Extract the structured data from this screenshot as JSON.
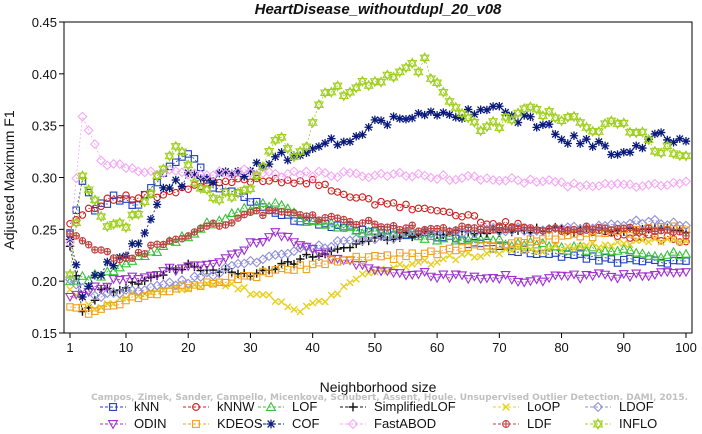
{
  "chart_data": {
    "type": "line",
    "title": "HeartDisease_withoutdupl_20_v08",
    "xlabel": "Neighborhood size",
    "ylabel": "Adjusted Maximum F1",
    "xlim": [
      1,
      100
    ],
    "ylim": [
      0.15,
      0.45
    ],
    "xticks": [
      1,
      10,
      20,
      30,
      40,
      50,
      60,
      70,
      80,
      90,
      100
    ],
    "yticks": [
      0.15,
      0.2,
      0.25,
      0.3,
      0.35,
      0.4,
      0.45
    ],
    "grid": false,
    "legend_position": "bottom",
    "watermark": "Campos, Zimek, Sander, Campello, Micenkova, Schubert, Assent, Houle. Unsupervised Outlier Detection. DAMI, 2015.",
    "series": [
      {
        "name": "kNN",
        "color": "#1f3fbf",
        "marker": "square",
        "knots": [
          [
            1,
            0.245
          ],
          [
            3,
            0.297
          ],
          [
            5,
            0.27
          ],
          [
            8,
            0.28
          ],
          [
            12,
            0.275
          ],
          [
            16,
            0.305
          ],
          [
            20,
            0.325
          ],
          [
            24,
            0.29
          ],
          [
            28,
            0.285
          ],
          [
            32,
            0.27
          ],
          [
            36,
            0.262
          ],
          [
            40,
            0.257
          ],
          [
            45,
            0.253
          ],
          [
            50,
            0.25
          ],
          [
            55,
            0.247
          ],
          [
            60,
            0.244
          ],
          [
            65,
            0.238
          ],
          [
            70,
            0.232
          ],
          [
            75,
            0.228
          ],
          [
            80,
            0.225
          ],
          [
            85,
            0.222
          ],
          [
            90,
            0.22
          ],
          [
            95,
            0.218
          ],
          [
            100,
            0.222
          ]
        ]
      },
      {
        "name": "kNNW",
        "color": "#d02020",
        "marker": "circle",
        "knots": [
          [
            1,
            0.255
          ],
          [
            4,
            0.27
          ],
          [
            8,
            0.28
          ],
          [
            12,
            0.28
          ],
          [
            16,
            0.283
          ],
          [
            20,
            0.29
          ],
          [
            25,
            0.295
          ],
          [
            30,
            0.298
          ],
          [
            35,
            0.298
          ],
          [
            40,
            0.295
          ],
          [
            45,
            0.285
          ],
          [
            50,
            0.275
          ],
          [
            55,
            0.272
          ],
          [
            60,
            0.268
          ],
          [
            65,
            0.262
          ],
          [
            70,
            0.255
          ],
          [
            75,
            0.252
          ],
          [
            80,
            0.25
          ],
          [
            85,
            0.248
          ],
          [
            90,
            0.245
          ],
          [
            95,
            0.242
          ],
          [
            100,
            0.24
          ]
        ]
      },
      {
        "name": "LOF",
        "color": "#3ac23a",
        "marker": "triangle-up",
        "knots": [
          [
            1,
            0.2
          ],
          [
            5,
            0.205
          ],
          [
            10,
            0.215
          ],
          [
            15,
            0.23
          ],
          [
            20,
            0.245
          ],
          [
            25,
            0.26
          ],
          [
            30,
            0.27
          ],
          [
            34,
            0.275
          ],
          [
            38,
            0.26
          ],
          [
            42,
            0.255
          ],
          [
            46,
            0.25
          ],
          [
            50,
            0.248
          ],
          [
            55,
            0.245
          ],
          [
            60,
            0.242
          ],
          [
            65,
            0.24
          ],
          [
            70,
            0.238
          ],
          [
            75,
            0.235
          ],
          [
            80,
            0.232
          ],
          [
            85,
            0.23
          ],
          [
            90,
            0.228
          ],
          [
            95,
            0.226
          ],
          [
            100,
            0.225
          ]
        ]
      },
      {
        "name": "SimplifiedLOF",
        "color": "#111111",
        "marker": "plus",
        "knots": [
          [
            1,
            0.235
          ],
          [
            3,
            0.17
          ],
          [
            6,
            0.19
          ],
          [
            10,
            0.195
          ],
          [
            15,
            0.205
          ],
          [
            20,
            0.215
          ],
          [
            25,
            0.21
          ],
          [
            30,
            0.205
          ],
          [
            35,
            0.215
          ],
          [
            40,
            0.225
          ],
          [
            45,
            0.232
          ],
          [
            50,
            0.24
          ],
          [
            55,
            0.245
          ],
          [
            60,
            0.247
          ],
          [
            65,
            0.248
          ],
          [
            70,
            0.248
          ],
          [
            75,
            0.249
          ],
          [
            80,
            0.25
          ],
          [
            85,
            0.25
          ],
          [
            90,
            0.25
          ],
          [
            95,
            0.25
          ],
          [
            100,
            0.25
          ]
        ]
      },
      {
        "name": "LoOP",
        "color": "#e8d020",
        "marker": "cross",
        "knots": [
          [
            1,
            0.19
          ],
          [
            5,
            0.175
          ],
          [
            10,
            0.185
          ],
          [
            15,
            0.19
          ],
          [
            20,
            0.195
          ],
          [
            25,
            0.2
          ],
          [
            30,
            0.19
          ],
          [
            35,
            0.18
          ],
          [
            38,
            0.172
          ],
          [
            42,
            0.18
          ],
          [
            46,
            0.2
          ],
          [
            50,
            0.21
          ],
          [
            55,
            0.215
          ],
          [
            60,
            0.22
          ],
          [
            65,
            0.225
          ],
          [
            70,
            0.228
          ],
          [
            75,
            0.23
          ],
          [
            80,
            0.232
          ],
          [
            85,
            0.235
          ],
          [
            90,
            0.237
          ],
          [
            95,
            0.24
          ],
          [
            100,
            0.24
          ]
        ]
      },
      {
        "name": "LDOF",
        "color": "#9090d8",
        "marker": "diamond",
        "knots": [
          [
            1,
            0.2
          ],
          [
            5,
            0.185
          ],
          [
            10,
            0.19
          ],
          [
            15,
            0.195
          ],
          [
            20,
            0.2
          ],
          [
            25,
            0.21
          ],
          [
            30,
            0.22
          ],
          [
            35,
            0.225
          ],
          [
            40,
            0.232
          ],
          [
            45,
            0.238
          ],
          [
            50,
            0.242
          ],
          [
            55,
            0.245
          ],
          [
            60,
            0.247
          ],
          [
            65,
            0.248
          ],
          [
            70,
            0.249
          ],
          [
            75,
            0.25
          ],
          [
            80,
            0.252
          ],
          [
            85,
            0.253
          ],
          [
            90,
            0.255
          ],
          [
            95,
            0.258
          ],
          [
            100,
            0.255
          ]
        ]
      },
      {
        "name": "ODIN",
        "color": "#a030d0",
        "marker": "triangle-down",
        "knots": [
          [
            1,
            0.185
          ],
          [
            4,
            0.19
          ],
          [
            8,
            0.2
          ],
          [
            12,
            0.205
          ],
          [
            16,
            0.21
          ],
          [
            20,
            0.215
          ],
          [
            25,
            0.22
          ],
          [
            30,
            0.235
          ],
          [
            34,
            0.245
          ],
          [
            38,
            0.235
          ],
          [
            42,
            0.225
          ],
          [
            46,
            0.218
          ],
          [
            50,
            0.212
          ],
          [
            55,
            0.208
          ],
          [
            60,
            0.205
          ],
          [
            65,
            0.205
          ],
          [
            70,
            0.205
          ],
          [
            75,
            0.2
          ],
          [
            80,
            0.205
          ],
          [
            85,
            0.205
          ],
          [
            90,
            0.205
          ],
          [
            95,
            0.205
          ],
          [
            100,
            0.21
          ]
        ]
      },
      {
        "name": "KDEOS",
        "color": "#f0a020",
        "marker": "square",
        "knots": [
          [
            1,
            0.175
          ],
          [
            5,
            0.17
          ],
          [
            10,
            0.18
          ],
          [
            15,
            0.19
          ],
          [
            20,
            0.195
          ],
          [
            25,
            0.2
          ],
          [
            30,
            0.205
          ],
          [
            35,
            0.21
          ],
          [
            40,
            0.215
          ],
          [
            45,
            0.22
          ],
          [
            50,
            0.222
          ],
          [
            55,
            0.225
          ],
          [
            60,
            0.228
          ],
          [
            65,
            0.232
          ],
          [
            70,
            0.236
          ],
          [
            75,
            0.24
          ],
          [
            80,
            0.243
          ],
          [
            85,
            0.245
          ],
          [
            90,
            0.248
          ],
          [
            95,
            0.25
          ],
          [
            100,
            0.25
          ]
        ]
      },
      {
        "name": "COF",
        "color": "#0a1a7a",
        "marker": "asterisk",
        "knots": [
          [
            1,
            0.24
          ],
          [
            3,
            0.19
          ],
          [
            5,
            0.2
          ],
          [
            8,
            0.22
          ],
          [
            12,
            0.24
          ],
          [
            16,
            0.285
          ],
          [
            20,
            0.3
          ],
          [
            24,
            0.3
          ],
          [
            28,
            0.305
          ],
          [
            32,
            0.31
          ],
          [
            35,
            0.32
          ],
          [
            38,
            0.325
          ],
          [
            42,
            0.33
          ],
          [
            46,
            0.34
          ],
          [
            50,
            0.35
          ],
          [
            55,
            0.36
          ],
          [
            60,
            0.36
          ],
          [
            65,
            0.36
          ],
          [
            70,
            0.365
          ],
          [
            75,
            0.355
          ],
          [
            80,
            0.34
          ],
          [
            85,
            0.33
          ],
          [
            90,
            0.325
          ],
          [
            95,
            0.34
          ],
          [
            100,
            0.33
          ]
        ]
      },
      {
        "name": "FastABOD",
        "color": "#f4a8f4",
        "marker": "diamond",
        "knots": [
          [
            1,
            0.24
          ],
          [
            3,
            0.36
          ],
          [
            6,
            0.315
          ],
          [
            10,
            0.31
          ],
          [
            15,
            0.305
          ],
          [
            20,
            0.305
          ],
          [
            25,
            0.305
          ],
          [
            30,
            0.305
          ],
          [
            35,
            0.303
          ],
          [
            40,
            0.303
          ],
          [
            45,
            0.303
          ],
          [
            50,
            0.302
          ],
          [
            55,
            0.302
          ],
          [
            60,
            0.3
          ],
          [
            65,
            0.3
          ],
          [
            70,
            0.298
          ],
          [
            75,
            0.296
          ],
          [
            80,
            0.294
          ],
          [
            85,
            0.292
          ],
          [
            90,
            0.292
          ],
          [
            95,
            0.293
          ],
          [
            100,
            0.295
          ]
        ]
      },
      {
        "name": "LDF",
        "color": "#c04040",
        "marker": "circle-plus",
        "knots": [
          [
            1,
            0.245
          ],
          [
            5,
            0.23
          ],
          [
            10,
            0.22
          ],
          [
            15,
            0.235
          ],
          [
            20,
            0.245
          ],
          [
            25,
            0.255
          ],
          [
            30,
            0.265
          ],
          [
            35,
            0.268
          ],
          [
            40,
            0.262
          ],
          [
            45,
            0.258
          ],
          [
            50,
            0.255
          ],
          [
            55,
            0.252
          ],
          [
            60,
            0.25
          ],
          [
            65,
            0.25
          ],
          [
            70,
            0.25
          ],
          [
            75,
            0.25
          ],
          [
            80,
            0.25
          ],
          [
            85,
            0.25
          ],
          [
            90,
            0.25
          ],
          [
            95,
            0.248
          ],
          [
            100,
            0.245
          ]
        ]
      },
      {
        "name": "INFLO",
        "color": "#a0d020",
        "marker": "star",
        "knots": [
          [
            1,
            0.205
          ],
          [
            3,
            0.3
          ],
          [
            6,
            0.26
          ],
          [
            10,
            0.25
          ],
          [
            15,
            0.3
          ],
          [
            18,
            0.33
          ],
          [
            22,
            0.29
          ],
          [
            26,
            0.28
          ],
          [
            30,
            0.285
          ],
          [
            34,
            0.34
          ],
          [
            38,
            0.32
          ],
          [
            42,
            0.38
          ],
          [
            46,
            0.385
          ],
          [
            50,
            0.39
          ],
          [
            54,
            0.4
          ],
          [
            58,
            0.41
          ],
          [
            62,
            0.37
          ],
          [
            66,
            0.35
          ],
          [
            70,
            0.35
          ],
          [
            75,
            0.37
          ],
          [
            80,
            0.355
          ],
          [
            85,
            0.35
          ],
          [
            90,
            0.35
          ],
          [
            95,
            0.33
          ],
          [
            100,
            0.32
          ]
        ]
      }
    ]
  }
}
